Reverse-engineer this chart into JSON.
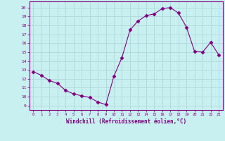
{
  "x": [
    0,
    1,
    2,
    3,
    4,
    5,
    6,
    7,
    8,
    9,
    10,
    11,
    12,
    13,
    14,
    15,
    16,
    17,
    18,
    19,
    20,
    21,
    22,
    23
  ],
  "y": [
    12.8,
    12.4,
    11.8,
    11.5,
    10.7,
    10.3,
    10.1,
    9.9,
    9.4,
    9.1,
    12.3,
    14.4,
    17.5,
    18.5,
    19.1,
    19.3,
    19.9,
    20.0,
    19.4,
    17.8,
    15.1,
    15.0,
    16.1,
    14.7
  ],
  "line_color": "#800080",
  "marker": "D",
  "marker_size": 2.5,
  "bg_color": "#c8f0f0",
  "grid_color": "#b0d8d8",
  "xlabel": "Windchill (Refroidissement éolien,°C)",
  "ylabel": "",
  "yticks": [
    9,
    10,
    11,
    12,
    13,
    14,
    15,
    16,
    17,
    18,
    19,
    20
  ],
  "xticks": [
    0,
    1,
    2,
    3,
    4,
    5,
    6,
    7,
    8,
    9,
    10,
    11,
    12,
    13,
    14,
    15,
    16,
    17,
    18,
    19,
    20,
    21,
    22,
    23
  ],
  "axis_color": "#800080",
  "tick_color": "#800080",
  "label_color": "#800080"
}
